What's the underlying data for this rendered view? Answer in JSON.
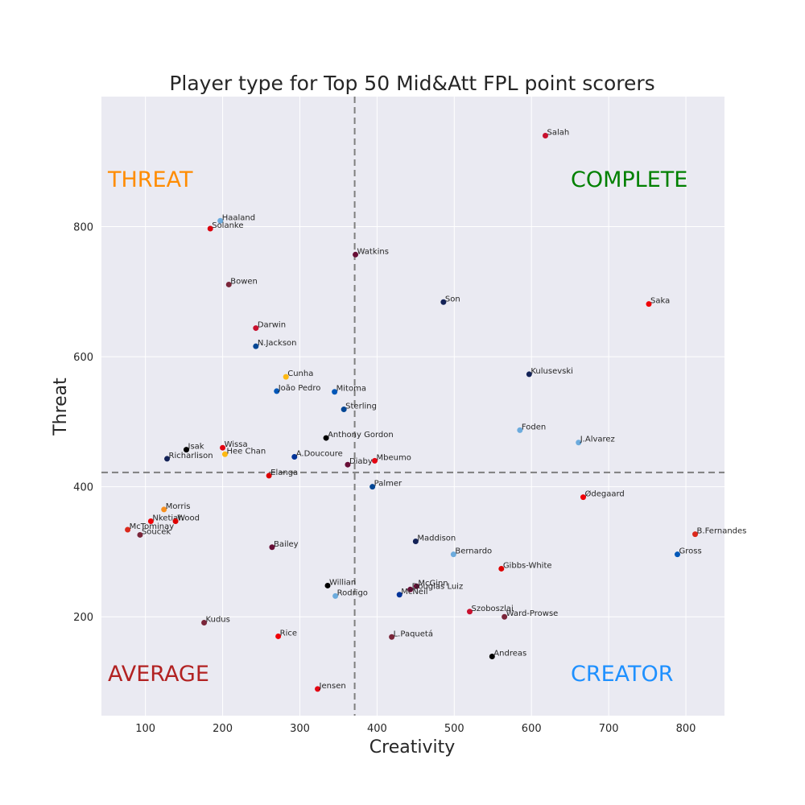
{
  "chart_data": {
    "type": "scatter",
    "title": "Player type for Top 50 Mid&Att FPL point scorers",
    "xlabel": "Creativity",
    "ylabel": "Threat",
    "xlim": [
      43,
      850
    ],
    "ylim": [
      48,
      1000
    ],
    "grid": true,
    "background_color": "#eaeaf2",
    "grid_color": "#ffffff",
    "x_ticks": [
      100,
      200,
      300,
      400,
      500,
      600,
      700,
      800
    ],
    "y_ticks": [
      200,
      400,
      600,
      800
    ],
    "reference_lines": {
      "x": 371,
      "y": 422,
      "color": "#7f7f7f",
      "style": "dashed"
    },
    "quadrant_labels": [
      {
        "text": "THREAT",
        "position": "top-left",
        "color": "#ff8c00"
      },
      {
        "text": "COMPLETE",
        "position": "top-right",
        "color": "#008000"
      },
      {
        "text": "AVERAGE",
        "position": "bottom-left",
        "color": "#b22222"
      },
      {
        "text": "CREATOR",
        "position": "bottom-right",
        "color": "#1e90ff"
      }
    ],
    "points": [
      {
        "label": "Salah",
        "x": 618,
        "y": 940,
        "color": "#c8102e"
      },
      {
        "label": "Haaland",
        "x": 197,
        "y": 809,
        "color": "#6cabdd"
      },
      {
        "label": "Solanke",
        "x": 184,
        "y": 797,
        "color": "#da020e"
      },
      {
        "label": "Watkins",
        "x": 372,
        "y": 757,
        "color": "#670e36"
      },
      {
        "label": "Bowen",
        "x": 208,
        "y": 711,
        "color": "#7a263a"
      },
      {
        "label": "Son",
        "x": 486,
        "y": 684,
        "color": "#132257"
      },
      {
        "label": "Saka",
        "x": 752,
        "y": 681,
        "color": "#ef0107"
      },
      {
        "label": "Darwin",
        "x": 243,
        "y": 644,
        "color": "#c8102e"
      },
      {
        "label": "N.Jackson",
        "x": 243,
        "y": 616,
        "color": "#034694"
      },
      {
        "label": "Kulusevski",
        "x": 597,
        "y": 573,
        "color": "#132257"
      },
      {
        "label": "Cunha",
        "x": 282,
        "y": 569,
        "color": "#fdb913"
      },
      {
        "label": "João Pedro",
        "x": 270,
        "y": 547,
        "color": "#0057b8"
      },
      {
        "label": "Mitoma",
        "x": 345,
        "y": 546,
        "color": "#0057b8"
      },
      {
        "label": "Sterling",
        "x": 357,
        "y": 519,
        "color": "#034694"
      },
      {
        "label": "Foden",
        "x": 585,
        "y": 487,
        "color": "#6cabdd"
      },
      {
        "label": "Anthony Gordon",
        "x": 334,
        "y": 475,
        "color": "#000000"
      },
      {
        "label": "J.Alvarez",
        "x": 661,
        "y": 468,
        "color": "#6cabdd"
      },
      {
        "label": "Isak",
        "x": 153,
        "y": 457,
        "color": "#000000"
      },
      {
        "label": "Wissa",
        "x": 200,
        "y": 460,
        "color": "#e30613"
      },
      {
        "label": "Hee Chan",
        "x": 203,
        "y": 450,
        "color": "#fdb913"
      },
      {
        "label": "Richarlison",
        "x": 128,
        "y": 443,
        "color": "#132257"
      },
      {
        "label": "A.Doucoure",
        "x": 293,
        "y": 446,
        "color": "#003399"
      },
      {
        "label": "Mbeumo",
        "x": 397,
        "y": 440,
        "color": "#e30613"
      },
      {
        "label": "Diaby",
        "x": 362,
        "y": 434,
        "color": "#670e36"
      },
      {
        "label": "Elanga",
        "x": 260,
        "y": 417,
        "color": "#dd0000"
      },
      {
        "label": "Palmer",
        "x": 394,
        "y": 400,
        "color": "#034694"
      },
      {
        "label": "Ødegaard",
        "x": 667,
        "y": 384,
        "color": "#ef0107"
      },
      {
        "label": "Morris",
        "x": 124,
        "y": 365,
        "color": "#f78f1e"
      },
      {
        "label": "Nketiah",
        "x": 107,
        "y": 347,
        "color": "#ef0107"
      },
      {
        "label": "Wood",
        "x": 139,
        "y": 347,
        "color": "#dd0000"
      },
      {
        "label": "McTominay",
        "x": 77,
        "y": 334,
        "color": "#da291c"
      },
      {
        "label": "Soucek",
        "x": 93,
        "y": 326,
        "color": "#7a263a"
      },
      {
        "label": "B.Fernandes",
        "x": 812,
        "y": 327,
        "color": "#da291c"
      },
      {
        "label": "Maddison",
        "x": 450,
        "y": 316,
        "color": "#132257"
      },
      {
        "label": "Bailey",
        "x": 264,
        "y": 307,
        "color": "#670e36"
      },
      {
        "label": "Bernardo",
        "x": 499,
        "y": 296,
        "color": "#6cabdd"
      },
      {
        "label": "Gross",
        "x": 789,
        "y": 296,
        "color": "#0057b8"
      },
      {
        "label": "Gibbs-White",
        "x": 561,
        "y": 274,
        "color": "#dd0000"
      },
      {
        "label": "Willian",
        "x": 336,
        "y": 248,
        "color": "#000000"
      },
      {
        "label": "McGinn",
        "x": 451,
        "y": 247,
        "color": "#670e36"
      },
      {
        "label": "Douglas Luiz",
        "x": 443,
        "y": 242,
        "color": "#670e36"
      },
      {
        "label": "Rodrigo",
        "x": 346,
        "y": 232,
        "color": "#6cabdd"
      },
      {
        "label": "McNeil",
        "x": 429,
        "y": 234,
        "color": "#003399"
      },
      {
        "label": "Szoboszlai",
        "x": 520,
        "y": 208,
        "color": "#c8102e"
      },
      {
        "label": "Ward-Prowse",
        "x": 565,
        "y": 200,
        "color": "#7a263a"
      },
      {
        "label": "Kudus",
        "x": 176,
        "y": 191,
        "color": "#7a263a"
      },
      {
        "label": "Rice",
        "x": 272,
        "y": 170,
        "color": "#ef0107"
      },
      {
        "label": "L.Paquetá",
        "x": 419,
        "y": 169,
        "color": "#7a263a"
      },
      {
        "label": "Andreas",
        "x": 549,
        "y": 139,
        "color": "#000000"
      },
      {
        "label": "Jensen",
        "x": 323,
        "y": 89,
        "color": "#e30613"
      }
    ]
  }
}
